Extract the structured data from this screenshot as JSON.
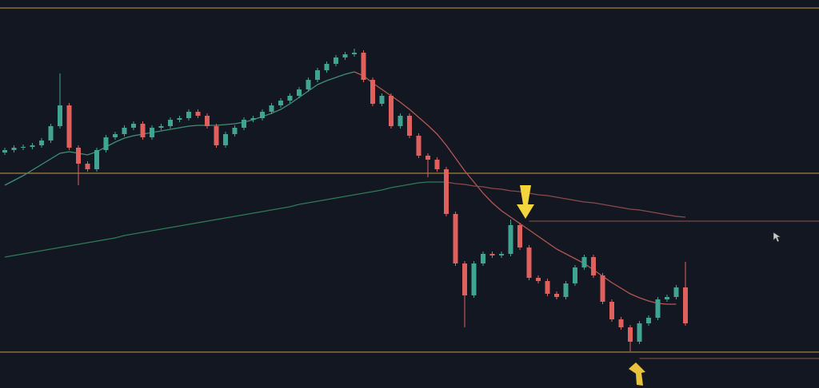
{
  "chart_data": {
    "type": "candlestick",
    "ylim": [
      0,
      486
    ],
    "colors": {
      "up": "#3fa592",
      "down": "#e0605e"
    },
    "open": [
      295,
      298,
      301,
      302,
      304,
      310,
      328,
      354,
      301,
      281,
      274,
      298,
      314,
      318,
      326,
      331,
      314,
      326,
      328,
      336,
      338,
      346,
      341,
      328,
      304,
      318,
      326,
      336,
      338,
      346,
      354,
      360,
      366,
      374,
      386,
      398,
      406,
      414,
      418,
      420,
      386,
      356,
      366,
      328,
      341,
      316,
      291,
      286,
      274,
      218,
      156,
      116,
      156,
      168,
      166,
      168,
      204,
      176,
      138,
      134,
      118,
      114,
      131,
      151,
      164,
      141,
      108,
      86,
      76,
      58,
      81,
      88,
      111,
      114,
      126
    ],
    "high": [
      301,
      304,
      305,
      307,
      313,
      331,
      394,
      357,
      304,
      284,
      301,
      317,
      321,
      329,
      334,
      334,
      329,
      331,
      339,
      341,
      349,
      349,
      344,
      331,
      321,
      329,
      339,
      341,
      349,
      357,
      363,
      369,
      377,
      389,
      401,
      409,
      417,
      421,
      425,
      423,
      389,
      369,
      369,
      344,
      344,
      319,
      294,
      289,
      277,
      221,
      159,
      159,
      171,
      171,
      171,
      211,
      207,
      179,
      141,
      137,
      121,
      134,
      154,
      167,
      167,
      144,
      111,
      89,
      79,
      84,
      91,
      114,
      117,
      129,
      158
    ],
    "low": [
      292,
      295,
      298,
      299,
      301,
      307,
      325,
      298,
      254,
      271,
      271,
      295,
      311,
      315,
      323,
      311,
      311,
      323,
      325,
      333,
      335,
      338,
      325,
      301,
      301,
      315,
      323,
      333,
      335,
      343,
      351,
      357,
      363,
      371,
      383,
      395,
      403,
      411,
      415,
      383,
      353,
      353,
      325,
      325,
      313,
      288,
      264,
      271,
      215,
      153,
      76,
      113,
      153,
      163,
      163,
      165,
      173,
      135,
      131,
      115,
      111,
      111,
      128,
      148,
      138,
      105,
      83,
      73,
      46,
      55,
      78,
      85,
      108,
      111,
      78
    ],
    "close": [
      298,
      301,
      302,
      304,
      310,
      328,
      354,
      301,
      281,
      274,
      298,
      314,
      318,
      326,
      331,
      314,
      326,
      328,
      336,
      338,
      346,
      341,
      328,
      304,
      318,
      326,
      336,
      338,
      346,
      354,
      360,
      366,
      374,
      386,
      398,
      406,
      414,
      418,
      420,
      386,
      356,
      366,
      328,
      341,
      316,
      291,
      286,
      274,
      218,
      156,
      116,
      156,
      168,
      166,
      168,
      204,
      176,
      138,
      134,
      118,
      114,
      131,
      151,
      164,
      141,
      108,
      86,
      76,
      58,
      81,
      88,
      111,
      114,
      126,
      81
    ],
    "overlays": [
      {
        "color": "#3f8f74",
        "values": [
          254,
          260,
          266,
          273,
          280,
          287,
          294,
          296,
          294,
          292,
          296,
          302,
          308,
          313,
          316,
          318,
          320,
          322,
          324,
          326,
          328,
          329,
          329,
          329,
          330,
          331,
          333,
          336,
          340,
          344,
          349,
          356,
          364,
          372,
          380,
          385,
          389,
          393,
          396,
          null,
          null,
          null,
          null,
          null,
          null,
          null,
          null,
          null,
          null,
          null,
          null,
          null,
          null,
          null,
          null,
          null,
          null,
          null,
          null,
          null,
          null,
          null,
          null,
          null,
          null,
          null,
          null,
          null,
          null,
          null,
          null,
          null,
          null,
          null,
          null
        ]
      },
      {
        "color": "#b5584f",
        "values": [
          null,
          null,
          null,
          null,
          null,
          null,
          null,
          null,
          null,
          null,
          null,
          null,
          null,
          null,
          null,
          null,
          null,
          null,
          null,
          null,
          null,
          null,
          null,
          null,
          null,
          null,
          null,
          null,
          null,
          null,
          null,
          null,
          null,
          null,
          null,
          null,
          null,
          null,
          396,
          391,
          382,
          374,
          366,
          358,
          349,
          339,
          329,
          318,
          304,
          288,
          272,
          258,
          244,
          232,
          222,
          214,
          206,
          198,
          190,
          182,
          174,
          168,
          162,
          156,
          148,
          140,
          132,
          125,
          118,
          113,
          109,
          106,
          105,
          105,
          null
        ]
      },
      {
        "color": "#2f7a58",
        "values": [
          164,
          166,
          168,
          170,
          172,
          174,
          176,
          178,
          180,
          182,
          184,
          186,
          188,
          191,
          193,
          195,
          197,
          199,
          201,
          203,
          205,
          207,
          209,
          211,
          213,
          215,
          217,
          219,
          221,
          223,
          225,
          227,
          230,
          232,
          234,
          236,
          238,
          240,
          242,
          244,
          246,
          248,
          251,
          253,
          255,
          257,
          258,
          258,
          258,
          null,
          null,
          null,
          null,
          null,
          null,
          null,
          null,
          null,
          null,
          null,
          null,
          null,
          null,
          null,
          null,
          null,
          null,
          null,
          null,
          null,
          null,
          null,
          null,
          null,
          null
        ]
      },
      {
        "color": "#8a4a4a",
        "values": [
          null,
          null,
          null,
          null,
          null,
          null,
          null,
          null,
          null,
          null,
          null,
          null,
          null,
          null,
          null,
          null,
          null,
          null,
          null,
          null,
          null,
          null,
          null,
          null,
          null,
          null,
          null,
          null,
          null,
          null,
          null,
          null,
          null,
          null,
          null,
          null,
          null,
          null,
          null,
          null,
          null,
          null,
          null,
          null,
          null,
          null,
          null,
          null,
          258,
          256,
          255,
          253,
          252,
          250,
          249,
          247,
          246,
          244,
          242,
          241,
          239,
          237,
          235,
          233,
          232,
          230,
          228,
          226,
          224,
          223,
          221,
          219,
          217,
          215,
          214
        ]
      }
    ],
    "levels": [
      {
        "value": 476,
        "color": "#a87f3c",
        "x_start": 0
      },
      {
        "value": 269,
        "color": "#a87f3c",
        "x_start": 0
      },
      {
        "value": 45,
        "color": "#a87f3c",
        "x_start": 0
      },
      {
        "value": 209,
        "color": "#7a4a44",
        "x_start": 57
      },
      {
        "value": 37,
        "color": "#7a4a44",
        "x_start": 69
      }
    ]
  }
}
